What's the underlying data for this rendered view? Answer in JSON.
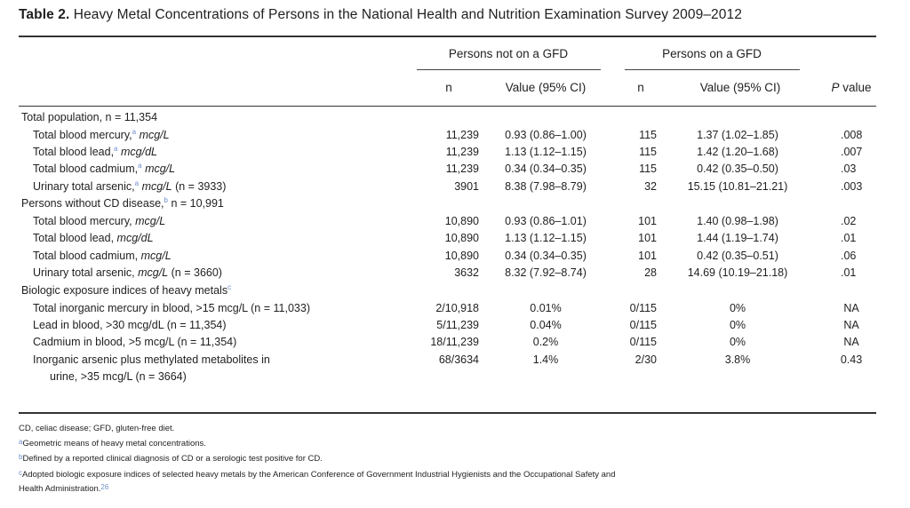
{
  "title": {
    "label": "Table 2.",
    "text": "Heavy Metal Concentrations of Persons in the National Health and Nutrition Examination Survey 2009–2012"
  },
  "headers": {
    "group_not_gfd": "Persons not on a GFD",
    "group_gfd": "Persons on a GFD",
    "n1": "n",
    "value1": "Value (95% CI)",
    "n2": "n",
    "value2": "Value (95% CI)",
    "p_italic": "P",
    "p_rest": " value"
  },
  "sections": [
    {
      "label": "Total population, n = 11,354",
      "sup": "",
      "rows": [
        {
          "label": "Total blood mercury,",
          "sup": "a",
          "unit": "mcg/L",
          "extra": "",
          "n1": "11,239",
          "v1": "0.93 (0.86–1.00)",
          "n2": "115",
          "v2": "1.37 (1.02–1.85)",
          "p": ".008"
        },
        {
          "label": "Total blood lead,",
          "sup": "a",
          "unit": "mcg/dL",
          "extra": "",
          "n1": "11,239",
          "v1": "1.13 (1.12–1.15)",
          "n2": "115",
          "v2": "1.42 (1.20–1.68)",
          "p": ".007"
        },
        {
          "label": "Total blood cadmium,",
          "sup": "a",
          "unit": "mcg/L",
          "extra": "",
          "n1": "11,239",
          "v1": "0.34 (0.34–0.35)",
          "n2": "115",
          "v2": "0.42 (0.35–0.50)",
          "p": ".03"
        },
        {
          "label": "Urinary total arsenic,",
          "sup": "a",
          "unit": "mcg/L",
          "extra": "(n = 3933)",
          "n1": "3901",
          "v1": "8.38 (7.98–8.79)",
          "n2": "32",
          "v2": "15.15 (10.81–21.21)",
          "p": ".003"
        }
      ]
    },
    {
      "label": "Persons without CD disease,",
      "sup": "b",
      "label_tail": "n = 10,991",
      "rows": [
        {
          "label": "Total blood mercury,",
          "sup": "",
          "unit": "mcg/L",
          "extra": "",
          "n1": "10,890",
          "v1": "0.93 (0.86–1.01)",
          "n2": "101",
          "v2": "1.40 (0.98–1.98)",
          "p": ".02"
        },
        {
          "label": "Total blood lead,",
          "sup": "",
          "unit": "mcg/dL",
          "extra": "",
          "n1": "10,890",
          "v1": "1.13 (1.12–1.15)",
          "n2": "101",
          "v2": "1.44 (1.19–1.74)",
          "p": ".01"
        },
        {
          "label": "Total blood cadmium,",
          "sup": "",
          "unit": "mcg/L",
          "extra": "",
          "n1": "10,890",
          "v1": "0.34 (0.34–0.35)",
          "n2": "101",
          "v2": "0.42 (0.35–0.51)",
          "p": ".06"
        },
        {
          "label": "Urinary total arsenic,",
          "sup": "",
          "unit": "mcg/L",
          "extra": "(n = 3660)",
          "n1": "3632",
          "v1": "8.32 (7.92–8.74)",
          "n2": "28",
          "v2": "14.69 (10.19–21.18)",
          "p": ".01"
        }
      ]
    },
    {
      "label": "Biologic exposure indices of heavy metals",
      "sup": "c",
      "rows": [
        {
          "label": "Total inorganic mercury in blood, >15 mcg/L (n = 11,033)",
          "n1": "2/10,918",
          "v1": "0.01%",
          "n2": "0/115",
          "v2": "0%",
          "p": "NA"
        },
        {
          "label": "Lead in blood, >30 mcg/dL (n = 11,354)",
          "n1": "5/11,239",
          "v1": "0.04%",
          "n2": "0/115",
          "v2": "0%",
          "p": "NA"
        },
        {
          "label": "Cadmium in blood, >5 mcg/L (n = 11,354)",
          "n1": "18/11,239",
          "v1": "0.2%",
          "n2": "0/115",
          "v2": "0%",
          "p": "NA"
        },
        {
          "label": "Inorganic arsenic plus methylated metabolites in",
          "label2": "urine, >35 mcg/L (n = 3664)",
          "n1": "68/3634",
          "v1": "1.4%",
          "n2": "2/30",
          "v2": "3.8%",
          "p": "0.43"
        }
      ]
    }
  ],
  "footnotes": {
    "abbrev": "CD, celiac disease; GFD, gluten-free diet.",
    "a_mark": "a",
    "a": "Geometric means of heavy metal concentrations.",
    "b_mark": "b",
    "b": "Defined by a reported clinical diagnosis of CD or a serologic test positive for CD.",
    "c_mark": "c",
    "c": "Adopted biologic exposure indices of selected heavy metals by the American Conference of Government Industrial Hygienists and the Occupational Safety and",
    "c2": "Health Administration.",
    "c2_ref": "26"
  }
}
